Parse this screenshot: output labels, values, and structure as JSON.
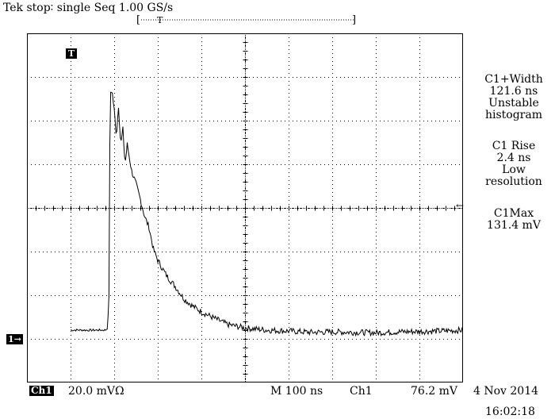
{
  "header": {
    "status": "Tek stop∶ single Seq  1.00 GS/s",
    "record_left": "[",
    "record_trigger": "T",
    "record_right": "]"
  },
  "trigger_marker": "T",
  "channel_marker": "1→",
  "measurements": [
    {
      "label": "C1+Width",
      "value": "121.6 ns",
      "note1": "Unstable",
      "note2": "histogram"
    },
    {
      "label": "C1 Rise",
      "value": "2.4 ns",
      "note1": "Low",
      "note2": "resolution"
    },
    {
      "label": "C1Max",
      "value": "131.4 mV"
    }
  ],
  "level_arrow": "←",
  "bottom": {
    "channel": "Ch1",
    "scale": "20.0 mVΩ",
    "timebase": "M  100 ns",
    "trigger_source": "Ch1",
    "trigger_level": "76.2 mV",
    "date": "4 Nov 2014",
    "time": "16:02:18"
  },
  "chart_data": {
    "type": "line",
    "title": "",
    "xlabel": "",
    "ylabel": "",
    "x_divisions": 10,
    "y_divisions": 8,
    "xlim": [
      -1.0,
      9.0
    ],
    "ylim": [
      -1.2,
      6.8
    ],
    "grid": true,
    "series": [
      {
        "x": [
          0,
          20,
          40,
          60,
          80,
          85,
          88,
          90,
          92,
          95,
          100,
          105,
          110,
          115,
          120,
          125,
          130,
          140,
          150,
          160,
          170,
          180,
          190,
          200,
          220,
          240,
          260,
          280,
          300,
          330,
          360,
          400,
          450,
          500,
          550,
          600,
          650,
          700,
          750,
          800,
          850,
          900
        ],
        "y": [
          0,
          0.003,
          -0.002,
          0,
          0.002,
          0.05,
          0.8,
          4.2,
          5.45,
          5.5,
          5.05,
          4.45,
          5.15,
          4.25,
          4.6,
          3.8,
          4.25,
          3.65,
          3.35,
          3.0,
          2.6,
          2.35,
          1.85,
          1.6,
          1.25,
          1.0,
          0.72,
          0.55,
          0.42,
          0.27,
          0.13,
          0.05,
          0.0,
          -0.02,
          -0.05,
          -0.04,
          -0.05,
          -0.06,
          -0.04,
          -0.03,
          -0.02,
          0.0
        ]
      }
    ],
    "x_unit": "ns",
    "y_unit": "div"
  }
}
